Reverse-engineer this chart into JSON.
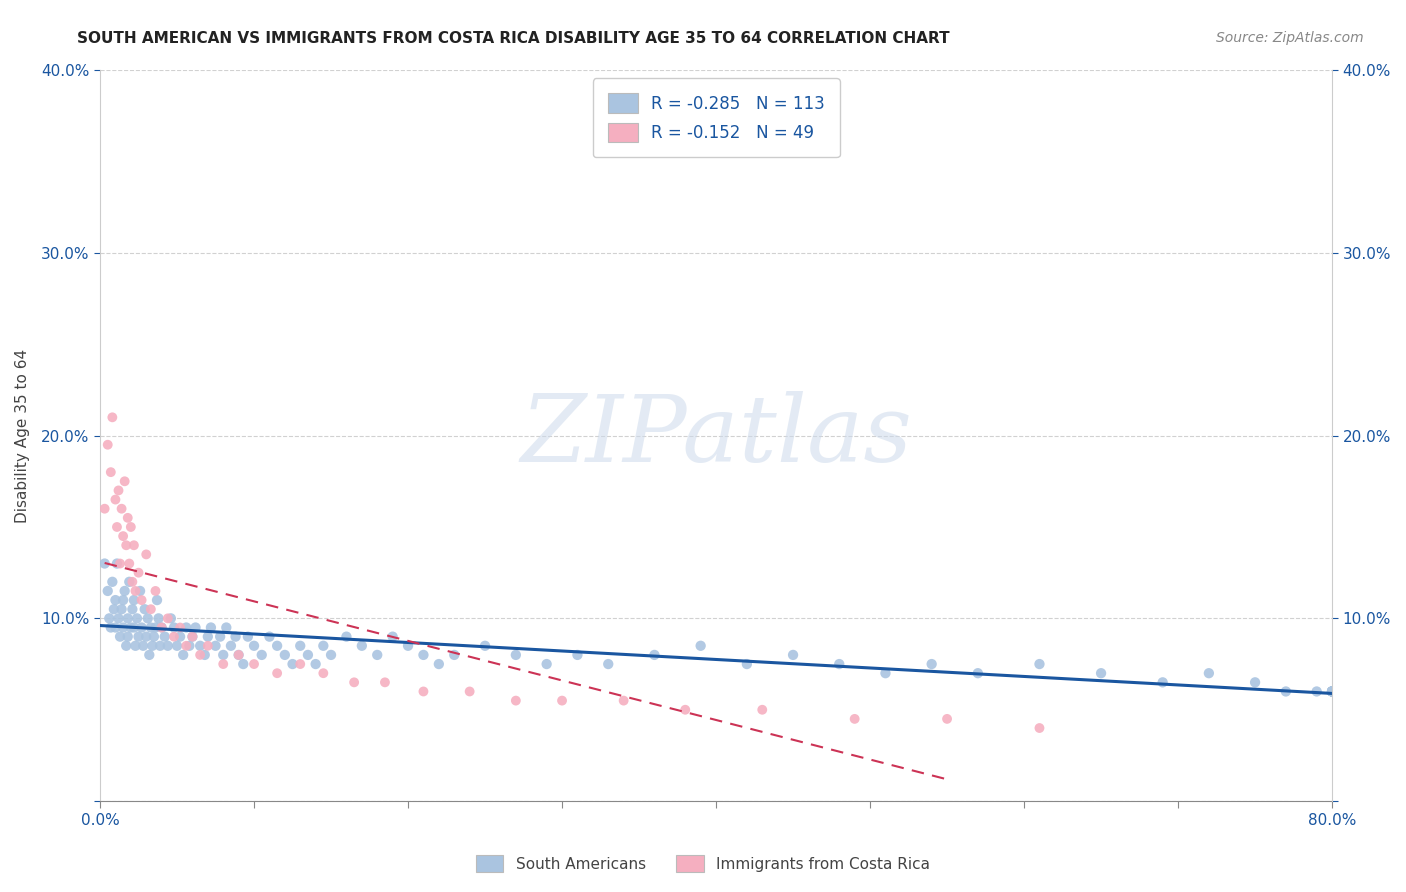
{
  "title": "SOUTH AMERICAN VS IMMIGRANTS FROM COSTA RICA DISABILITY AGE 35 TO 64 CORRELATION CHART",
  "source": "Source: ZipAtlas.com",
  "ylabel": "Disability Age 35 to 64",
  "xlim": [
    0.0,
    0.8
  ],
  "ylim": [
    0.0,
    0.4
  ],
  "xticks": [
    0.0,
    0.1,
    0.2,
    0.3,
    0.4,
    0.5,
    0.6,
    0.7,
    0.8
  ],
  "xticklabels": [
    "0.0%",
    "",
    "",
    "",
    "",
    "",
    "",
    "",
    "80.0%"
  ],
  "yticks": [
    0.0,
    0.1,
    0.2,
    0.3,
    0.4
  ],
  "yticklabels_left": [
    "",
    "10.0%",
    "20.0%",
    "30.0%",
    "40.0%"
  ],
  "yticklabels_right": [
    "",
    "10.0%",
    "20.0%",
    "30.0%",
    "40.0%"
  ],
  "blue_R": -0.285,
  "blue_N": 113,
  "pink_R": -0.152,
  "pink_N": 49,
  "blue_color": "#aac4e0",
  "pink_color": "#f5afc0",
  "blue_line_color": "#1a56a0",
  "pink_line_color": "#cc3355",
  "legend_text_color": "#1a56a0",
  "watermark_text": "ZIPatlas",
  "watermark_color": "#cddaeb",
  "grid_color": "#cccccc",
  "background_color": "#ffffff",
  "tick_color": "#1a56a0",
  "blue_scatter_x": [
    0.003,
    0.005,
    0.006,
    0.007,
    0.008,
    0.009,
    0.01,
    0.01,
    0.011,
    0.012,
    0.013,
    0.014,
    0.015,
    0.015,
    0.016,
    0.017,
    0.018,
    0.018,
    0.019,
    0.02,
    0.021,
    0.022,
    0.022,
    0.023,
    0.024,
    0.025,
    0.026,
    0.027,
    0.028,
    0.029,
    0.03,
    0.031,
    0.032,
    0.033,
    0.034,
    0.035,
    0.036,
    0.037,
    0.038,
    0.039,
    0.04,
    0.042,
    0.044,
    0.046,
    0.048,
    0.05,
    0.052,
    0.054,
    0.056,
    0.058,
    0.06,
    0.062,
    0.065,
    0.068,
    0.07,
    0.072,
    0.075,
    0.078,
    0.08,
    0.082,
    0.085,
    0.088,
    0.09,
    0.093,
    0.096,
    0.1,
    0.105,
    0.11,
    0.115,
    0.12,
    0.125,
    0.13,
    0.135,
    0.14,
    0.145,
    0.15,
    0.16,
    0.17,
    0.18,
    0.19,
    0.2,
    0.21,
    0.22,
    0.23,
    0.25,
    0.27,
    0.29,
    0.31,
    0.33,
    0.36,
    0.39,
    0.42,
    0.45,
    0.48,
    0.51,
    0.54,
    0.57,
    0.61,
    0.65,
    0.69,
    0.72,
    0.75,
    0.77,
    0.79,
    0.8,
    0.8,
    0.8,
    0.8,
    0.8,
    0.8,
    0.8,
    0.8,
    0.8
  ],
  "blue_scatter_y": [
    0.13,
    0.115,
    0.1,
    0.095,
    0.12,
    0.105,
    0.11,
    0.095,
    0.13,
    0.1,
    0.09,
    0.105,
    0.095,
    0.11,
    0.115,
    0.085,
    0.1,
    0.09,
    0.12,
    0.095,
    0.105,
    0.095,
    0.11,
    0.085,
    0.1,
    0.09,
    0.115,
    0.095,
    0.085,
    0.105,
    0.09,
    0.1,
    0.08,
    0.095,
    0.085,
    0.09,
    0.095,
    0.11,
    0.1,
    0.085,
    0.095,
    0.09,
    0.085,
    0.1,
    0.095,
    0.085,
    0.09,
    0.08,
    0.095,
    0.085,
    0.09,
    0.095,
    0.085,
    0.08,
    0.09,
    0.095,
    0.085,
    0.09,
    0.08,
    0.095,
    0.085,
    0.09,
    0.08,
    0.075,
    0.09,
    0.085,
    0.08,
    0.09,
    0.085,
    0.08,
    0.075,
    0.085,
    0.08,
    0.075,
    0.085,
    0.08,
    0.09,
    0.085,
    0.08,
    0.09,
    0.085,
    0.08,
    0.075,
    0.08,
    0.085,
    0.08,
    0.075,
    0.08,
    0.075,
    0.08,
    0.085,
    0.075,
    0.08,
    0.075,
    0.07,
    0.075,
    0.07,
    0.075,
    0.07,
    0.065,
    0.07,
    0.065,
    0.06,
    0.06,
    0.06,
    0.06,
    0.06,
    0.06,
    0.06,
    0.06,
    0.06,
    0.06,
    0.06
  ],
  "pink_scatter_x": [
    0.003,
    0.005,
    0.007,
    0.008,
    0.01,
    0.011,
    0.012,
    0.013,
    0.014,
    0.015,
    0.016,
    0.017,
    0.018,
    0.019,
    0.02,
    0.021,
    0.022,
    0.023,
    0.025,
    0.027,
    0.03,
    0.033,
    0.036,
    0.04,
    0.044,
    0.048,
    0.052,
    0.056,
    0.06,
    0.065,
    0.07,
    0.08,
    0.09,
    0.1,
    0.115,
    0.13,
    0.145,
    0.165,
    0.185,
    0.21,
    0.24,
    0.27,
    0.3,
    0.34,
    0.38,
    0.43,
    0.49,
    0.55,
    0.61
  ],
  "pink_scatter_y": [
    0.16,
    0.195,
    0.18,
    0.21,
    0.165,
    0.15,
    0.17,
    0.13,
    0.16,
    0.145,
    0.175,
    0.14,
    0.155,
    0.13,
    0.15,
    0.12,
    0.14,
    0.115,
    0.125,
    0.11,
    0.135,
    0.105,
    0.115,
    0.095,
    0.1,
    0.09,
    0.095,
    0.085,
    0.09,
    0.08,
    0.085,
    0.075,
    0.08,
    0.075,
    0.07,
    0.075,
    0.07,
    0.065,
    0.065,
    0.06,
    0.06,
    0.055,
    0.055,
    0.055,
    0.05,
    0.05,
    0.045,
    0.045,
    0.04
  ],
  "blue_marker_size": 55,
  "pink_marker_size": 50,
  "title_fontsize": 11,
  "source_fontsize": 10,
  "tick_fontsize": 11,
  "ylabel_fontsize": 11,
  "legend_fontsize": 12
}
